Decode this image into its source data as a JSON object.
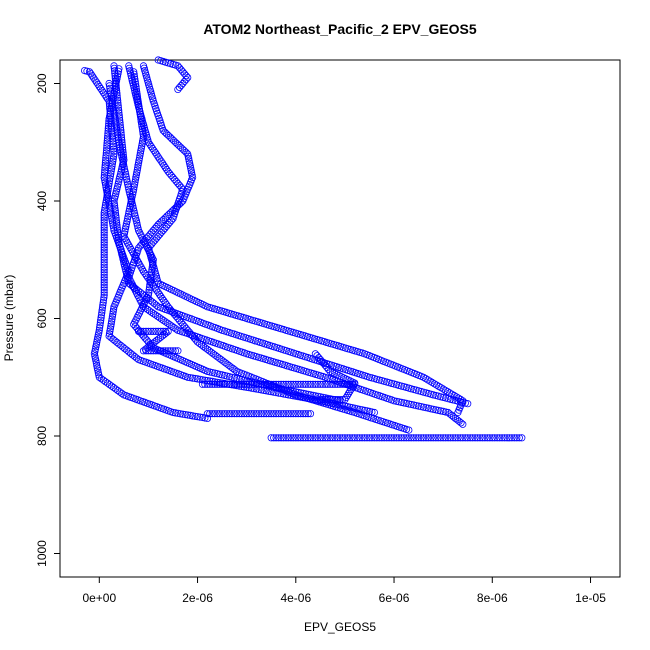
{
  "chart_data": {
    "type": "scatter",
    "title": "ATOM2 Northeast_Pacific_2 EPV_GEOS5",
    "xlabel": "EPV_GEOS5",
    "ylabel": "Pressure (mbar)",
    "xlim": [
      -8e-07,
      1.06e-05
    ],
    "ylim": [
      1040,
      160
    ],
    "y_reversed": true,
    "grid": false,
    "legend": "none",
    "marker": "open-circle",
    "color": "#0000ff",
    "x_ticks": [
      {
        "value": 0,
        "label": "0e+00"
      },
      {
        "value": 2e-06,
        "label": "2e-06"
      },
      {
        "value": 4e-06,
        "label": "4e-06"
      },
      {
        "value": 6e-06,
        "label": "6e-06"
      },
      {
        "value": 8e-06,
        "label": "8e-06"
      },
      {
        "value": 1e-05,
        "label": "1e-05"
      }
    ],
    "y_ticks": [
      {
        "value": 200,
        "label": "200"
      },
      {
        "value": 400,
        "label": "400"
      },
      {
        "value": 600,
        "label": "600"
      },
      {
        "value": 800,
        "label": "800"
      },
      {
        "value": 1000,
        "label": "1000"
      }
    ],
    "series": [
      {
        "points": [
          [
            -3e-07,
            178
          ],
          [
            -2e-07,
            180
          ],
          [
            2e-07,
            230
          ],
          [
            3e-07,
            320
          ],
          [
            1e-07,
            420
          ],
          [
            1e-07,
            500
          ],
          [
            1e-07,
            560
          ],
          [
            0.0,
            620
          ],
          [
            -1e-07,
            660
          ],
          [
            0.0,
            700
          ],
          [
            5e-07,
            730
          ],
          [
            1.5e-06,
            760
          ],
          [
            2.2e-06,
            770
          ]
        ]
      },
      {
        "points": [
          [
            3e-07,
            170
          ],
          [
            4e-07,
            250
          ],
          [
            5e-07,
            330
          ],
          [
            3e-07,
            400
          ],
          [
            4e-07,
            470
          ],
          [
            6e-07,
            540
          ],
          [
            1.2e-06,
            580
          ],
          [
            2.5e-06,
            620
          ],
          [
            4e-06,
            660
          ],
          [
            5.5e-06,
            700
          ],
          [
            6.8e-06,
            730
          ],
          [
            7.5e-06,
            745
          ]
        ]
      },
      {
        "points": [
          [
            6e-07,
            170
          ],
          [
            8e-07,
            240
          ],
          [
            1e-06,
            300
          ],
          [
            1.4e-06,
            350
          ],
          [
            1.7e-06,
            380
          ],
          [
            1.5e-06,
            430
          ],
          [
            1e-06,
            480
          ],
          [
            1.2e-06,
            540
          ],
          [
            2.2e-06,
            580
          ],
          [
            3.8e-06,
            620
          ],
          [
            5.4e-06,
            660
          ],
          [
            6.6e-06,
            700
          ],
          [
            7.4e-06,
            740
          ],
          [
            7.3e-06,
            760
          ]
        ]
      },
      {
        "points": [
          [
            9e-07,
            170
          ],
          [
            1.1e-06,
            230
          ],
          [
            1.3e-06,
            280
          ],
          [
            1.8e-06,
            320
          ],
          [
            1.9e-06,
            360
          ],
          [
            1.7e-06,
            400
          ],
          [
            1.2e-06,
            440
          ],
          [
            8e-07,
            480
          ],
          [
            6e-07,
            530
          ],
          [
            9e-07,
            580
          ],
          [
            1.6e-06,
            620
          ],
          [
            3e-06,
            660
          ],
          [
            4.6e-06,
            700
          ],
          [
            6e-06,
            740
          ],
          [
            7.1e-06,
            760
          ],
          [
            7.4e-06,
            780
          ]
        ]
      },
      {
        "points": [
          [
            4e-07,
            175
          ],
          [
            2e-07,
            260
          ],
          [
            1e-07,
            360
          ],
          [
            3e-07,
            450
          ],
          [
            6e-07,
            520
          ],
          [
            3e-07,
            580
          ],
          [
            2e-07,
            630
          ],
          [
            8e-07,
            670
          ],
          [
            1.8e-06,
            700
          ],
          [
            3.2e-06,
            720
          ],
          [
            4.5e-06,
            740
          ],
          [
            5.6e-06,
            760
          ]
        ]
      },
      {
        "points": [
          [
            7e-07,
            180
          ],
          [
            9e-07,
            290
          ],
          [
            7e-07,
            380
          ],
          [
            5e-07,
            460
          ],
          [
            9e-07,
            520
          ],
          [
            1.4e-06,
            580
          ],
          [
            2e-06,
            640
          ],
          [
            2.8e-06,
            690
          ],
          [
            4e-06,
            730
          ],
          [
            5.2e-06,
            760
          ],
          [
            6.3e-06,
            790
          ]
        ]
      },
      {
        "points": [
          [
            2e-07,
            200
          ],
          [
            4e-07,
            300
          ],
          [
            6e-07,
            380
          ],
          [
            8e-07,
            450
          ],
          [
            1.1e-06,
            500
          ],
          [
            1e-06,
            560
          ],
          [
            7e-07,
            610
          ],
          [
            1.1e-06,
            650
          ],
          [
            2.2e-06,
            690
          ],
          [
            3.7e-06,
            720
          ],
          [
            4.9e-06,
            740
          ]
        ]
      },
      {
        "points": [
          [
            3.5e-06,
            803
          ],
          [
            4.5e-06,
            803
          ],
          [
            5.5e-06,
            803
          ],
          [
            6.5e-06,
            803
          ],
          [
            7.5e-06,
            803
          ],
          [
            8.6e-06,
            803
          ]
        ]
      },
      {
        "points": [
          [
            2.1e-06,
            712
          ],
          [
            3.4e-06,
            712
          ],
          [
            4.1e-06,
            712
          ],
          [
            5.2e-06,
            712
          ]
        ]
      },
      {
        "points": [
          [
            2.2e-06,
            762
          ],
          [
            3.4e-06,
            762
          ],
          [
            3.8e-06,
            762
          ],
          [
            4.3e-06,
            762
          ]
        ]
      },
      {
        "points": [
          [
            4.5e-06,
            738
          ],
          [
            5e-06,
            738
          ],
          [
            5.2e-06,
            710
          ],
          [
            4.7e-06,
            690
          ],
          [
            4.4e-06,
            660
          ]
        ]
      },
      {
        "points": [
          [
            8e-07,
            622
          ],
          [
            1.4e-06,
            622
          ],
          [
            9e-07,
            655
          ],
          [
            1.6e-06,
            655
          ]
        ]
      },
      {
        "points": [
          [
            1.2e-06,
            160
          ],
          [
            1.6e-06,
            170
          ],
          [
            1.8e-06,
            190
          ],
          [
            1.6e-06,
            210
          ]
        ]
      }
    ]
  }
}
